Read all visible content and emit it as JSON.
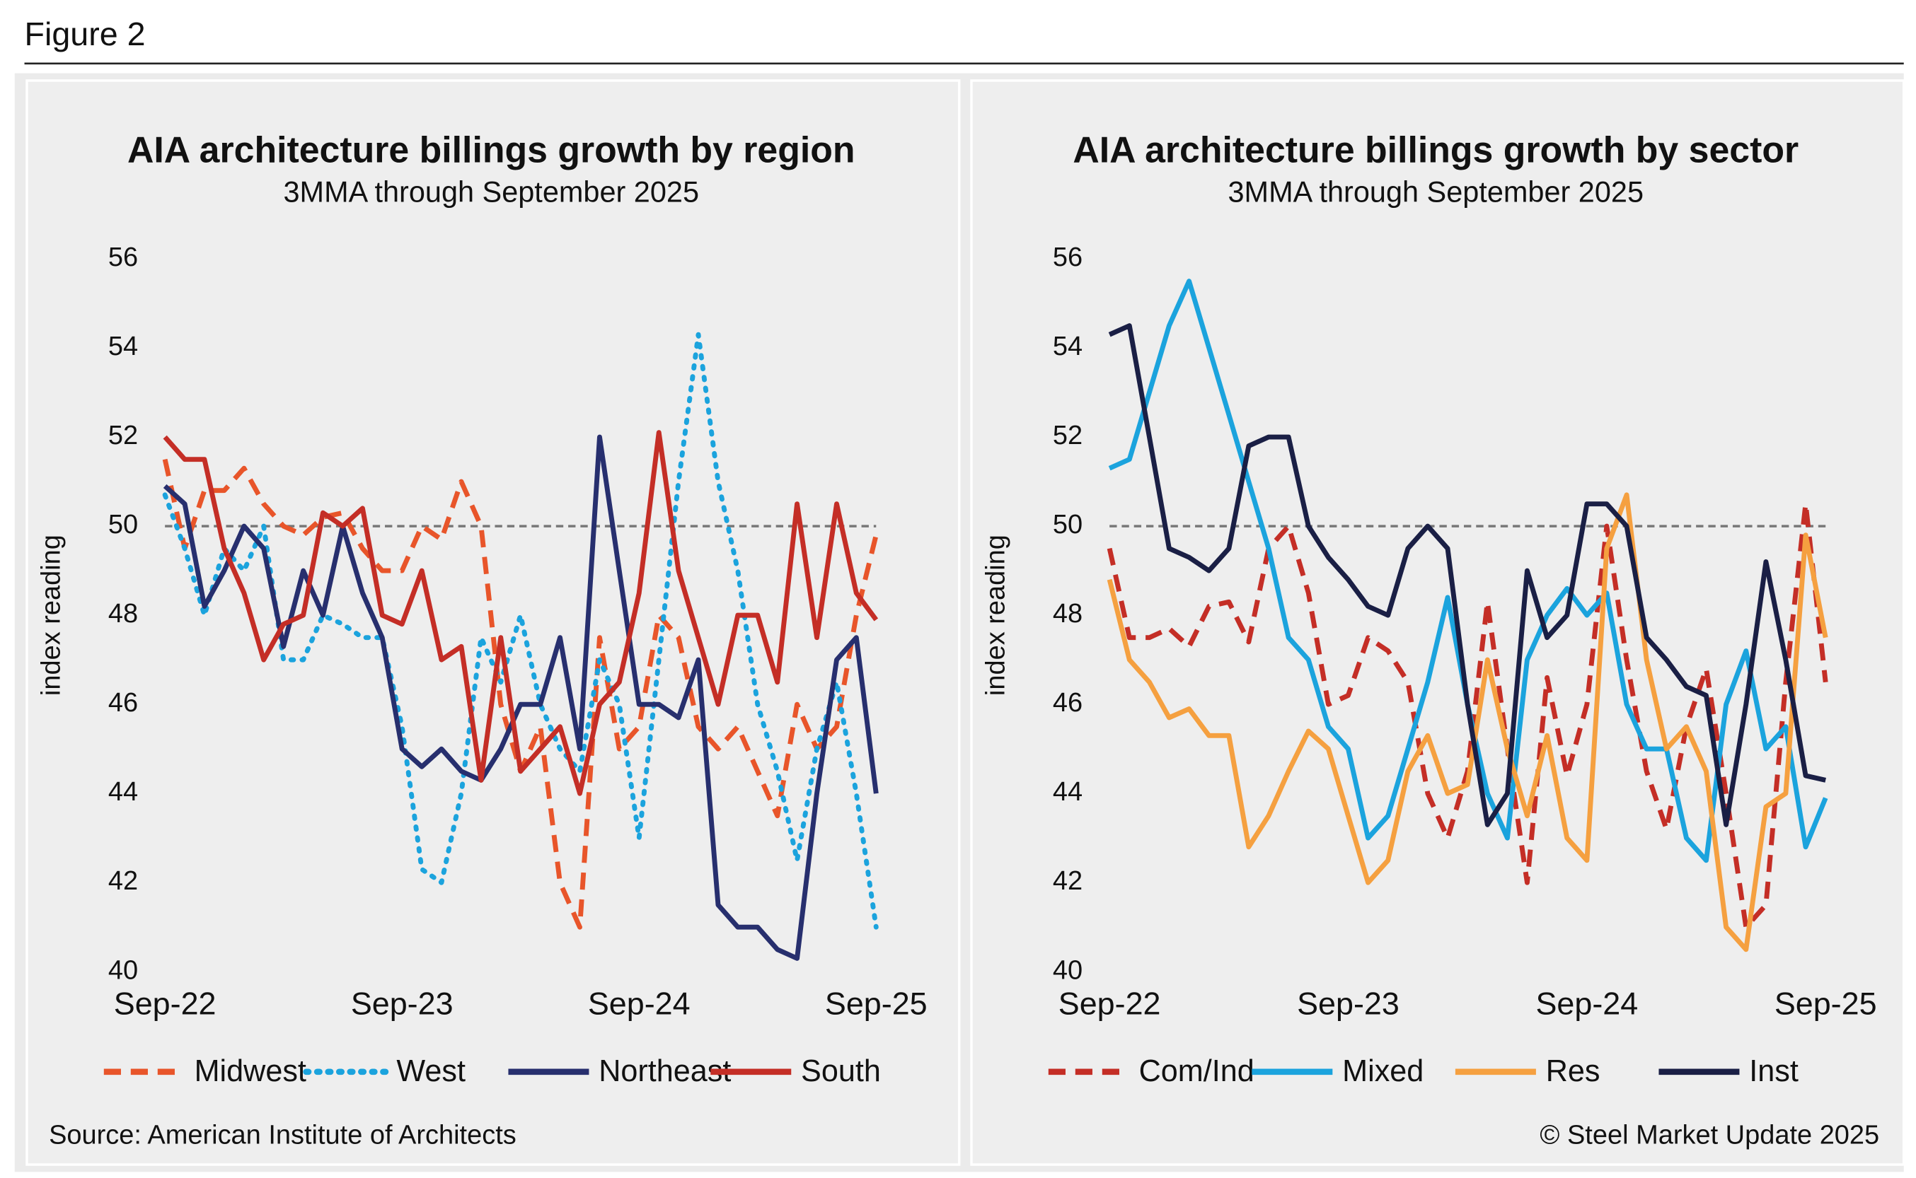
{
  "figure_label": "Figure 2",
  "source": "Source: American Institute of Architects",
  "copyright": "© Steel Market Update 2025",
  "chart_data": [
    {
      "type": "line",
      "title": "AIA architecture billings growth by region",
      "subtitle": "3MMA through September 2025",
      "y_label": "index reading",
      "categories": [
        "Sep-22",
        null,
        null,
        null,
        null,
        null,
        null,
        null,
        null,
        null,
        null,
        null,
        "Sep-23",
        null,
        null,
        null,
        null,
        null,
        null,
        null,
        null,
        null,
        null,
        null,
        "Sep-24",
        null,
        null,
        null,
        null,
        null,
        null,
        null,
        null,
        null,
        null,
        null,
        "Sep-25"
      ],
      "ylim": [
        40,
        56
      ],
      "yticks": [
        40,
        42,
        44,
        46,
        48,
        50,
        52,
        54,
        56
      ],
      "hline": 50,
      "series": [
        {
          "name": "Midwest",
          "color": "#e8552a",
          "line_style": "dashed",
          "values": [
            51.5,
            49.5,
            50.8,
            50.8,
            51.3,
            50.5,
            50,
            49.8,
            50.2,
            50.3,
            49.5,
            49,
            49,
            50,
            49.7,
            51,
            50,
            46,
            44.5,
            45.5,
            42,
            41,
            47.5,
            45,
            45.5,
            48,
            47.5,
            45.5,
            45,
            45.5,
            44.5,
            43.5,
            46,
            45,
            45.5,
            48,
            49.8
          ]
        },
        {
          "name": "West",
          "color": "#1ba3dd",
          "line_style": "dotted",
          "values": [
            50.7,
            49.5,
            48,
            49.5,
            49,
            50,
            47,
            47,
            48,
            47.8,
            47.5,
            47.5,
            45.5,
            42.3,
            42,
            44,
            47.5,
            46.5,
            48,
            46,
            45,
            44.5,
            47,
            46,
            43,
            47,
            51,
            54.3,
            51,
            49,
            46,
            44.5,
            42.5,
            45,
            46.5,
            44,
            41
          ]
        },
        {
          "name": "Northeast",
          "color": "#272f6e",
          "line_style": "solid",
          "values": [
            50.9,
            50.5,
            48.2,
            49,
            50,
            49.5,
            47.3,
            49,
            48,
            50,
            48.5,
            47.5,
            45,
            44.6,
            45,
            44.5,
            44.3,
            45,
            46,
            46,
            47.5,
            45,
            52,
            49,
            46,
            46,
            45.7,
            47,
            41.5,
            41,
            41,
            40.5,
            40.3,
            44,
            47,
            47.5,
            44
          ]
        },
        {
          "name": "South",
          "color": "#c42e26",
          "line_style": "solid",
          "values": [
            52,
            51.5,
            51.5,
            49.5,
            48.5,
            47,
            47.8,
            48,
            50.3,
            50,
            50.4,
            48,
            47.8,
            49,
            47,
            47.3,
            44.3,
            47.5,
            44.5,
            45,
            45.5,
            44,
            46,
            46.5,
            48.5,
            52.1,
            49,
            47.5,
            46,
            48,
            48,
            46.5,
            50.5,
            47.5,
            50.5,
            48.5,
            47.9
          ]
        }
      ]
    },
    {
      "type": "line",
      "title": "AIA architecture billings growth by sector",
      "subtitle": "3MMA through September 2025",
      "y_label": "index reading",
      "categories": [
        "Sep-22",
        null,
        null,
        null,
        null,
        null,
        null,
        null,
        null,
        null,
        null,
        null,
        "Sep-23",
        null,
        null,
        null,
        null,
        null,
        null,
        null,
        null,
        null,
        null,
        null,
        "Sep-24",
        null,
        null,
        null,
        null,
        null,
        null,
        null,
        null,
        null,
        null,
        null,
        "Sep-25"
      ],
      "ylim": [
        40,
        56
      ],
      "yticks": [
        40,
        42,
        44,
        46,
        48,
        50,
        52,
        54,
        56
      ],
      "hline": 50,
      "series": [
        {
          "name": "Com/Ind",
          "color": "#c42e26",
          "line_style": "dashed",
          "values": [
            49.5,
            47.5,
            47.5,
            47.7,
            47.3,
            48.2,
            48.3,
            47.4,
            49.5,
            50,
            48.5,
            46,
            46.2,
            47.5,
            47.2,
            46.5,
            44,
            43,
            44.5,
            48.3,
            45,
            42,
            46.6,
            44.4,
            46,
            50,
            47,
            44.5,
            43.2,
            45.5,
            46.8,
            44,
            41,
            41.5,
            46.5,
            50.5,
            46.5
          ]
        },
        {
          "name": "Mixed",
          "color": "#1ba3dd",
          "line_style": "solid",
          "values": [
            51.3,
            51.5,
            53,
            54.5,
            55.5,
            54,
            52.5,
            51,
            49.5,
            47.5,
            47,
            45.5,
            45,
            43,
            43.5,
            45,
            46.5,
            48.4,
            46,
            44,
            43,
            47,
            48,
            48.6,
            48,
            48.5,
            46,
            45,
            45,
            43,
            42.5,
            46,
            47.2,
            45,
            45.5,
            42.8,
            43.9
          ]
        },
        {
          "name": "Res",
          "color": "#f5a040",
          "line_style": "solid",
          "values": [
            48.8,
            47,
            46.5,
            45.7,
            45.9,
            45.3,
            45.3,
            42.8,
            43.5,
            44.5,
            45.4,
            45,
            43.5,
            42,
            42.5,
            44.5,
            45.3,
            44,
            44.2,
            47,
            45,
            43.5,
            45.3,
            43,
            42.5,
            49.5,
            50.7,
            47,
            45,
            45.5,
            44.5,
            41,
            40.5,
            43.7,
            44,
            49.8,
            47.5
          ]
        },
        {
          "name": "Inst",
          "color": "#1a1f45",
          "line_style": "solid",
          "values": [
            54.3,
            54.5,
            52,
            49.5,
            49.3,
            49,
            49.5,
            51.8,
            52,
            52,
            50,
            49.3,
            48.8,
            48.2,
            48,
            49.5,
            50,
            49.5,
            46,
            43.3,
            44,
            49,
            47.5,
            48,
            50.5,
            50.5,
            50,
            47.5,
            47,
            46.4,
            46.2,
            43.3,
            46,
            49.2,
            47,
            44.4,
            44.3
          ]
        }
      ]
    }
  ]
}
